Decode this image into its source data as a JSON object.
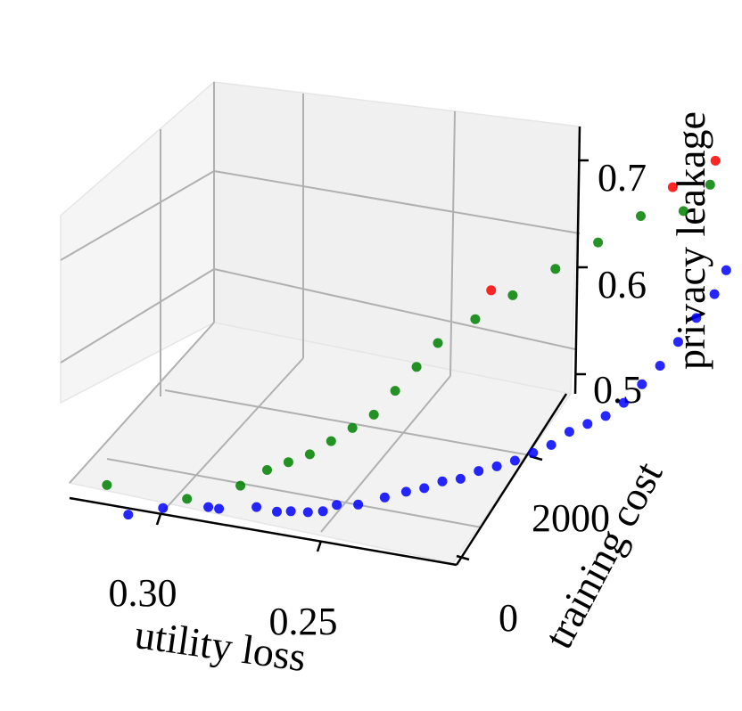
{
  "chart_data": {
    "type": "scatter",
    "projection": "3d",
    "title": "",
    "axes": {
      "x": {
        "label": "utility loss",
        "ticks": [
          0.3,
          0.25
        ],
        "tick_labels": [
          "0.30",
          "0.25"
        ]
      },
      "y": {
        "label": "training cost",
        "ticks": [
          0,
          2000
        ],
        "tick_labels": [
          "0",
          "2000"
        ]
      },
      "z": {
        "label": "privacy leakage",
        "ticks": [
          0.5,
          0.6,
          0.7
        ],
        "tick_labels": [
          "0.5",
          "0.6",
          "0.7"
        ]
      }
    },
    "grid": true,
    "series": [
      {
        "color": "#0000ff",
        "points": [
          {
            "x": 0.315,
            "y": 300,
            "z": 0.47
          },
          {
            "x": 0.305,
            "y": 350,
            "z": 0.475
          },
          {
            "x": 0.295,
            "y": 600,
            "z": 0.47
          },
          {
            "x": 0.292,
            "y": 620,
            "z": 0.468
          },
          {
            "x": 0.28,
            "y": 600,
            "z": 0.47
          },
          {
            "x": 0.272,
            "y": 500,
            "z": 0.468
          },
          {
            "x": 0.268,
            "y": 520,
            "z": 0.468
          },
          {
            "x": 0.262,
            "y": 480,
            "z": 0.468
          },
          {
            "x": 0.258,
            "y": 520,
            "z": 0.468
          },
          {
            "x": 0.255,
            "y": 600,
            "z": 0.472
          },
          {
            "x": 0.25,
            "y": 700,
            "z": 0.47
          },
          {
            "x": 0.245,
            "y": 900,
            "z": 0.472
          },
          {
            "x": 0.24,
            "y": 1000,
            "z": 0.475
          },
          {
            "x": 0.236,
            "y": 1100,
            "z": 0.476
          },
          {
            "x": 0.232,
            "y": 1200,
            "z": 0.48
          },
          {
            "x": 0.228,
            "y": 1300,
            "z": 0.48
          },
          {
            "x": 0.224,
            "y": 1400,
            "z": 0.485
          },
          {
            "x": 0.22,
            "y": 1500,
            "z": 0.487
          },
          {
            "x": 0.216,
            "y": 1600,
            "z": 0.49
          },
          {
            "x": 0.212,
            "y": 1700,
            "z": 0.495
          },
          {
            "x": 0.208,
            "y": 1800,
            "z": 0.5
          },
          {
            "x": 0.204,
            "y": 1900,
            "z": 0.51
          },
          {
            "x": 0.2,
            "y": 2000,
            "z": 0.515
          },
          {
            "x": 0.196,
            "y": 2100,
            "z": 0.52
          },
          {
            "x": 0.192,
            "y": 2200,
            "z": 0.53
          },
          {
            "x": 0.188,
            "y": 2300,
            "z": 0.545
          },
          {
            "x": 0.184,
            "y": 2400,
            "z": 0.56
          },
          {
            "x": 0.18,
            "y": 2500,
            "z": 0.58
          },
          {
            "x": 0.176,
            "y": 2600,
            "z": 0.6
          },
          {
            "x": 0.172,
            "y": 2700,
            "z": 0.62
          },
          {
            "x": 0.17,
            "y": 2800,
            "z": 0.64
          }
        ]
      },
      {
        "color": "#008000",
        "points": [
          {
            "x": 0.32,
            "y": 200,
            "z": 0.5
          },
          {
            "x": 0.3,
            "y": 500,
            "z": 0.48
          },
          {
            "x": 0.285,
            "y": 600,
            "z": 0.49
          },
          {
            "x": 0.28,
            "y": 800,
            "z": 0.5
          },
          {
            "x": 0.275,
            "y": 900,
            "z": 0.505
          },
          {
            "x": 0.27,
            "y": 1000,
            "z": 0.51
          },
          {
            "x": 0.265,
            "y": 1100,
            "z": 0.52
          },
          {
            "x": 0.26,
            "y": 1200,
            "z": 0.53
          },
          {
            "x": 0.255,
            "y": 1300,
            "z": 0.54
          },
          {
            "x": 0.25,
            "y": 1400,
            "z": 0.56
          },
          {
            "x": 0.245,
            "y": 1500,
            "z": 0.58
          },
          {
            "x": 0.24,
            "y": 1600,
            "z": 0.6
          },
          {
            "x": 0.23,
            "y": 1700,
            "z": 0.62
          },
          {
            "x": 0.22,
            "y": 1800,
            "z": 0.64
          },
          {
            "x": 0.21,
            "y": 2000,
            "z": 0.66
          },
          {
            "x": 0.2,
            "y": 2200,
            "z": 0.68
          },
          {
            "x": 0.19,
            "y": 2400,
            "z": 0.7
          },
          {
            "x": 0.18,
            "y": 2600,
            "z": 0.7
          },
          {
            "x": 0.175,
            "y": 2800,
            "z": 0.72
          }
        ]
      },
      {
        "color": "#ff0000",
        "points": [
          {
            "x": 0.23,
            "y": 2000,
            "z": 0.64
          },
          {
            "x": 0.185,
            "y": 2700,
            "z": 0.72
          },
          {
            "x": 0.175,
            "y": 2900,
            "z": 0.74
          }
        ]
      }
    ]
  }
}
